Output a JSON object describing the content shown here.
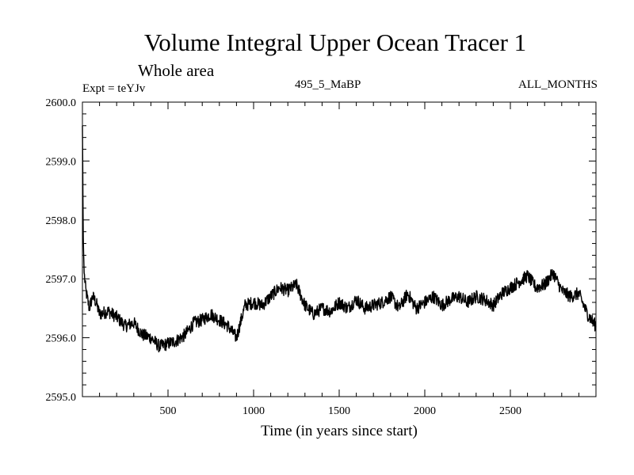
{
  "header": {
    "title": "Volume Integral Upper Ocean Tracer 1",
    "subtitle": "Whole area",
    "experiment": "Expt = teYJv",
    "period": "495_5_MaBP",
    "months": "ALL_MONTHS"
  },
  "chart_data": {
    "type": "line",
    "title": "Volume Integral Upper Ocean Tracer 1",
    "subtitle": "Whole area",
    "xlabel": "Time (in years since start)",
    "ylabel": "",
    "xlim": [
      0,
      3000
    ],
    "ylim": [
      2595.0,
      2600.0
    ],
    "x_ticks": [
      500,
      1000,
      1500,
      2000,
      2500
    ],
    "x_tick_labels": [
      "500",
      "1000",
      "1500",
      "2000",
      "2500"
    ],
    "y_ticks": [
      2595.0,
      2596.0,
      2597.0,
      2598.0,
      2599.0,
      2600.0
    ],
    "y_tick_labels": [
      "2595.0",
      "2596.0",
      "2597.0",
      "2598.0",
      "2599.0",
      "2600.0"
    ],
    "grid": false,
    "series": [
      {
        "name": "Tracer 1",
        "color": "#000000",
        "x": [
          0,
          5,
          10,
          20,
          40,
          60,
          80,
          100,
          150,
          200,
          250,
          300,
          350,
          400,
          450,
          500,
          550,
          600,
          650,
          700,
          750,
          800,
          850,
          900,
          950,
          1000,
          1050,
          1100,
          1150,
          1200,
          1250,
          1300,
          1350,
          1400,
          1450,
          1500,
          1550,
          1600,
          1650,
          1700,
          1750,
          1800,
          1850,
          1900,
          1950,
          2000,
          2050,
          2100,
          2150,
          2200,
          2250,
          2300,
          2350,
          2400,
          2450,
          2500,
          2550,
          2600,
          2650,
          2700,
          2750,
          2800,
          2850,
          2900,
          2950,
          3000
        ],
        "values": [
          2599.6,
          2597.7,
          2597.1,
          2596.8,
          2596.5,
          2596.7,
          2596.6,
          2596.4,
          2596.45,
          2596.35,
          2596.2,
          2596.25,
          2596.05,
          2596.0,
          2595.85,
          2595.9,
          2595.95,
          2596.05,
          2596.25,
          2596.3,
          2596.4,
          2596.3,
          2596.2,
          2596.0,
          2596.55,
          2596.6,
          2596.55,
          2596.7,
          2596.85,
          2596.8,
          2596.9,
          2596.55,
          2596.4,
          2596.5,
          2596.45,
          2596.6,
          2596.5,
          2596.65,
          2596.5,
          2596.55,
          2596.6,
          2596.7,
          2596.5,
          2596.75,
          2596.5,
          2596.6,
          2596.7,
          2596.55,
          2596.65,
          2596.7,
          2596.6,
          2596.7,
          2596.65,
          2596.55,
          2596.75,
          2596.85,
          2596.95,
          2597.05,
          2596.85,
          2596.9,
          2597.1,
          2596.8,
          2596.7,
          2596.75,
          2596.4,
          2596.2
        ]
      }
    ]
  },
  "axes": {
    "xlabel": "Time (in years since start)"
  }
}
